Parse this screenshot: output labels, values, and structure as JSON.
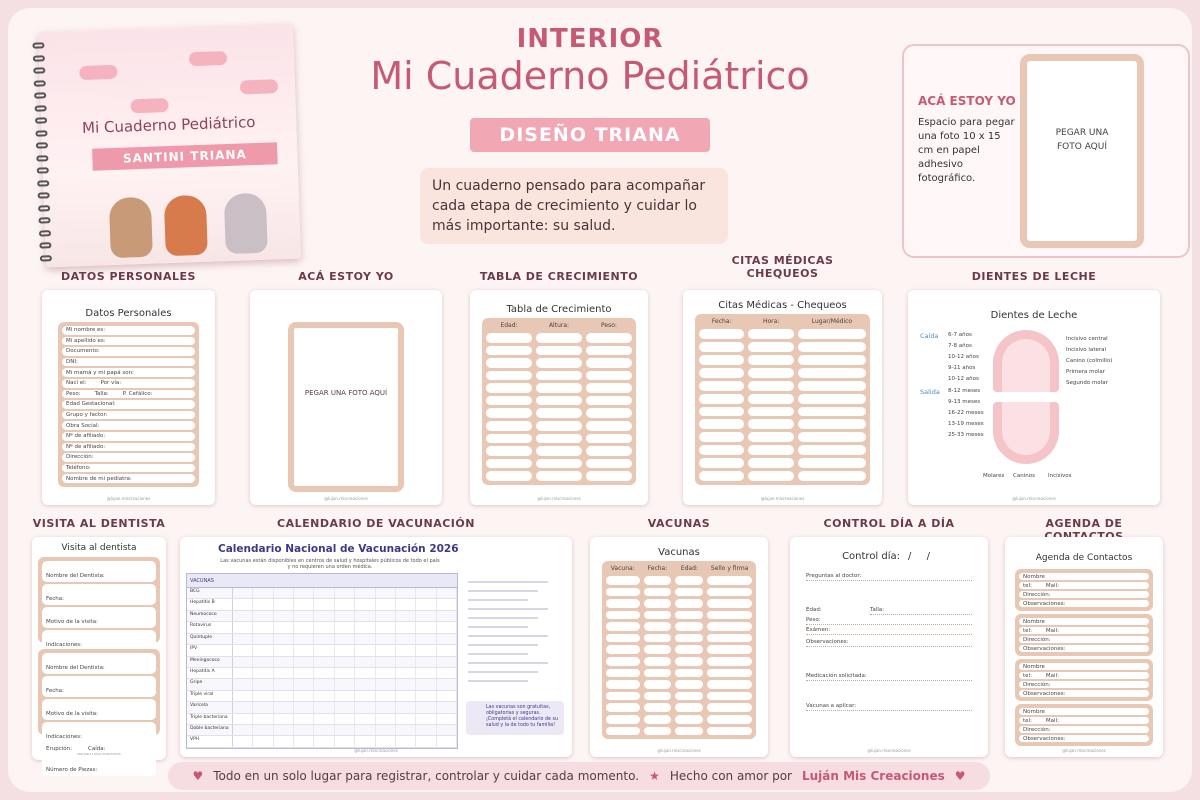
{
  "header": {
    "label": "INTERIOR",
    "title": "Mi Cuaderno Pediátrico",
    "ribbon": "DISEÑO TRIANA",
    "intro": "Un cuaderno pensado para acompañar cada etapa de crecimiento y cuidar lo más importante: su salud."
  },
  "cover": {
    "title": "Mi Cuaderno Pediátrico",
    "name": "SANTINI TRIANA"
  },
  "photo_box": {
    "heading": "ACÁ ESTOY YO",
    "text": "Espacio para pegar una foto 10 x 15 cm en papel adhesivo fotográfico.",
    "placeholder": "PEGAR UNA FOTO AQUÍ"
  },
  "credit": "@lujan.miscreaciones",
  "pages": [
    {
      "section": "DATOS PERSONALES",
      "title": "Datos Personales",
      "rows": [
        [
          "Mi nombre es:"
        ],
        [
          "Mi apellido es:"
        ],
        [
          "Documento:"
        ],
        [
          "DNI:"
        ],
        [
          "Mi mamá y mi papá son:"
        ],
        [
          "Nací el:",
          "Por vía:"
        ],
        [
          "Peso:",
          "Talla:",
          "P. Cefálico:"
        ],
        [
          "Edad Gestacional:"
        ],
        [
          "Grupo y factor:"
        ],
        [
          "Obra Social:"
        ],
        [
          "Nº de afiliado:"
        ],
        [
          "Nº de afiliado:"
        ],
        [
          "Dirección:"
        ],
        [
          "Teléfono:"
        ],
        [
          "Nombre de mi pediatra:"
        ]
      ]
    },
    {
      "section": "ACÁ ESTOY YO",
      "placeholder": "PEGAR UNA FOTO AQUÍ"
    },
    {
      "section": "TABLA DE CRECIMIENTO",
      "title": "Tabla de Crecimiento",
      "columns": [
        "Edad:",
        "Altura:",
        "Peso:"
      ]
    },
    {
      "section": "CITAS MÉDICAS CHEQUEOS",
      "title": "Citas Médicas - Chequeos",
      "columns": [
        "Fecha:",
        "Hora:",
        "Lugar/Médico"
      ]
    },
    {
      "section": "DIENTES DE LECHE",
      "title": "Dientes de Leche",
      "fall_label": "Caída",
      "erupt_label": "Salida",
      "fall": [
        "6-7 años",
        "7-8 años",
        "10-12 años",
        "9-11 años",
        "10-12 años"
      ],
      "erupt": [
        "8-12 meses",
        "9-13 meses",
        "16-22 meses",
        "13-19 meses",
        "25-33 meses"
      ],
      "teeth": [
        "Incisivo central",
        "Incisivo lateral",
        "Canino (colmillo)",
        "Primera molar",
        "Segundo molar"
      ],
      "bottom": [
        "Molares",
        "Caninos",
        "Incisivos"
      ]
    },
    {
      "section": "VISITA AL DENTISTA",
      "title": "Visita al dentista",
      "fields": [
        "Nombre del Dentista:",
        "Fecha:",
        "Motivo de la visita:",
        "Indicaciones:"
      ],
      "checks": [
        "Erupción:",
        "Caída:"
      ],
      "count": "Número de Piezas:"
    },
    {
      "section": "CALENDARIO DE VACUNACIÓN",
      "title": "Calendario Nacional de Vacunación 2026",
      "subtitle": "Las vacunas están disponibles en centros de salud y hospitales públicos de todo el país y no requieren una orden médica.",
      "column": "VACUNAS",
      "vaccines": [
        "BCG",
        "Hepatitis B",
        "Neumococo",
        "Rotavirus",
        "Quíntuple",
        "IPV",
        "Meningococo",
        "Hepatitis A",
        "Gripe",
        "Triple viral",
        "Varicela",
        "Triple bacteriana",
        "Doble bacteriana",
        "VPH"
      ],
      "note": "Las vacunas son gratuitas, obligatorias y seguras. ¡Completá el calendario de su salud y la de todo tu familia!"
    },
    {
      "section": "VACUNAS",
      "title": "Vacunas",
      "columns": [
        "Vacuna:",
        "Fecha:",
        "Edad:",
        "Sello y firma"
      ]
    },
    {
      "section": "CONTROL DÍA A DÍA",
      "title": "Control día:",
      "date": "/ /",
      "fields": [
        "Preguntas al doctor:",
        "Edad:",
        "Talla:",
        "Peso:",
        "Exámen:",
        "Observaciones:",
        "Medicación solicitada:",
        "Vacunas a aplicar:"
      ]
    },
    {
      "section": "AGENDA DE CONTACTOS",
      "title": "Agenda de Contactos",
      "rows": [
        [
          "Nombre"
        ],
        [
          "tel:",
          "Mail:"
        ],
        [
          "Dirección:"
        ],
        [
          "Observaciones:"
        ]
      ]
    }
  ],
  "footer": {
    "text": "Todo en un solo lugar para registrar, controlar y cuidar cada momento.",
    "made": "Hecho con amor por",
    "brand": "Luján Mis Creaciones"
  }
}
